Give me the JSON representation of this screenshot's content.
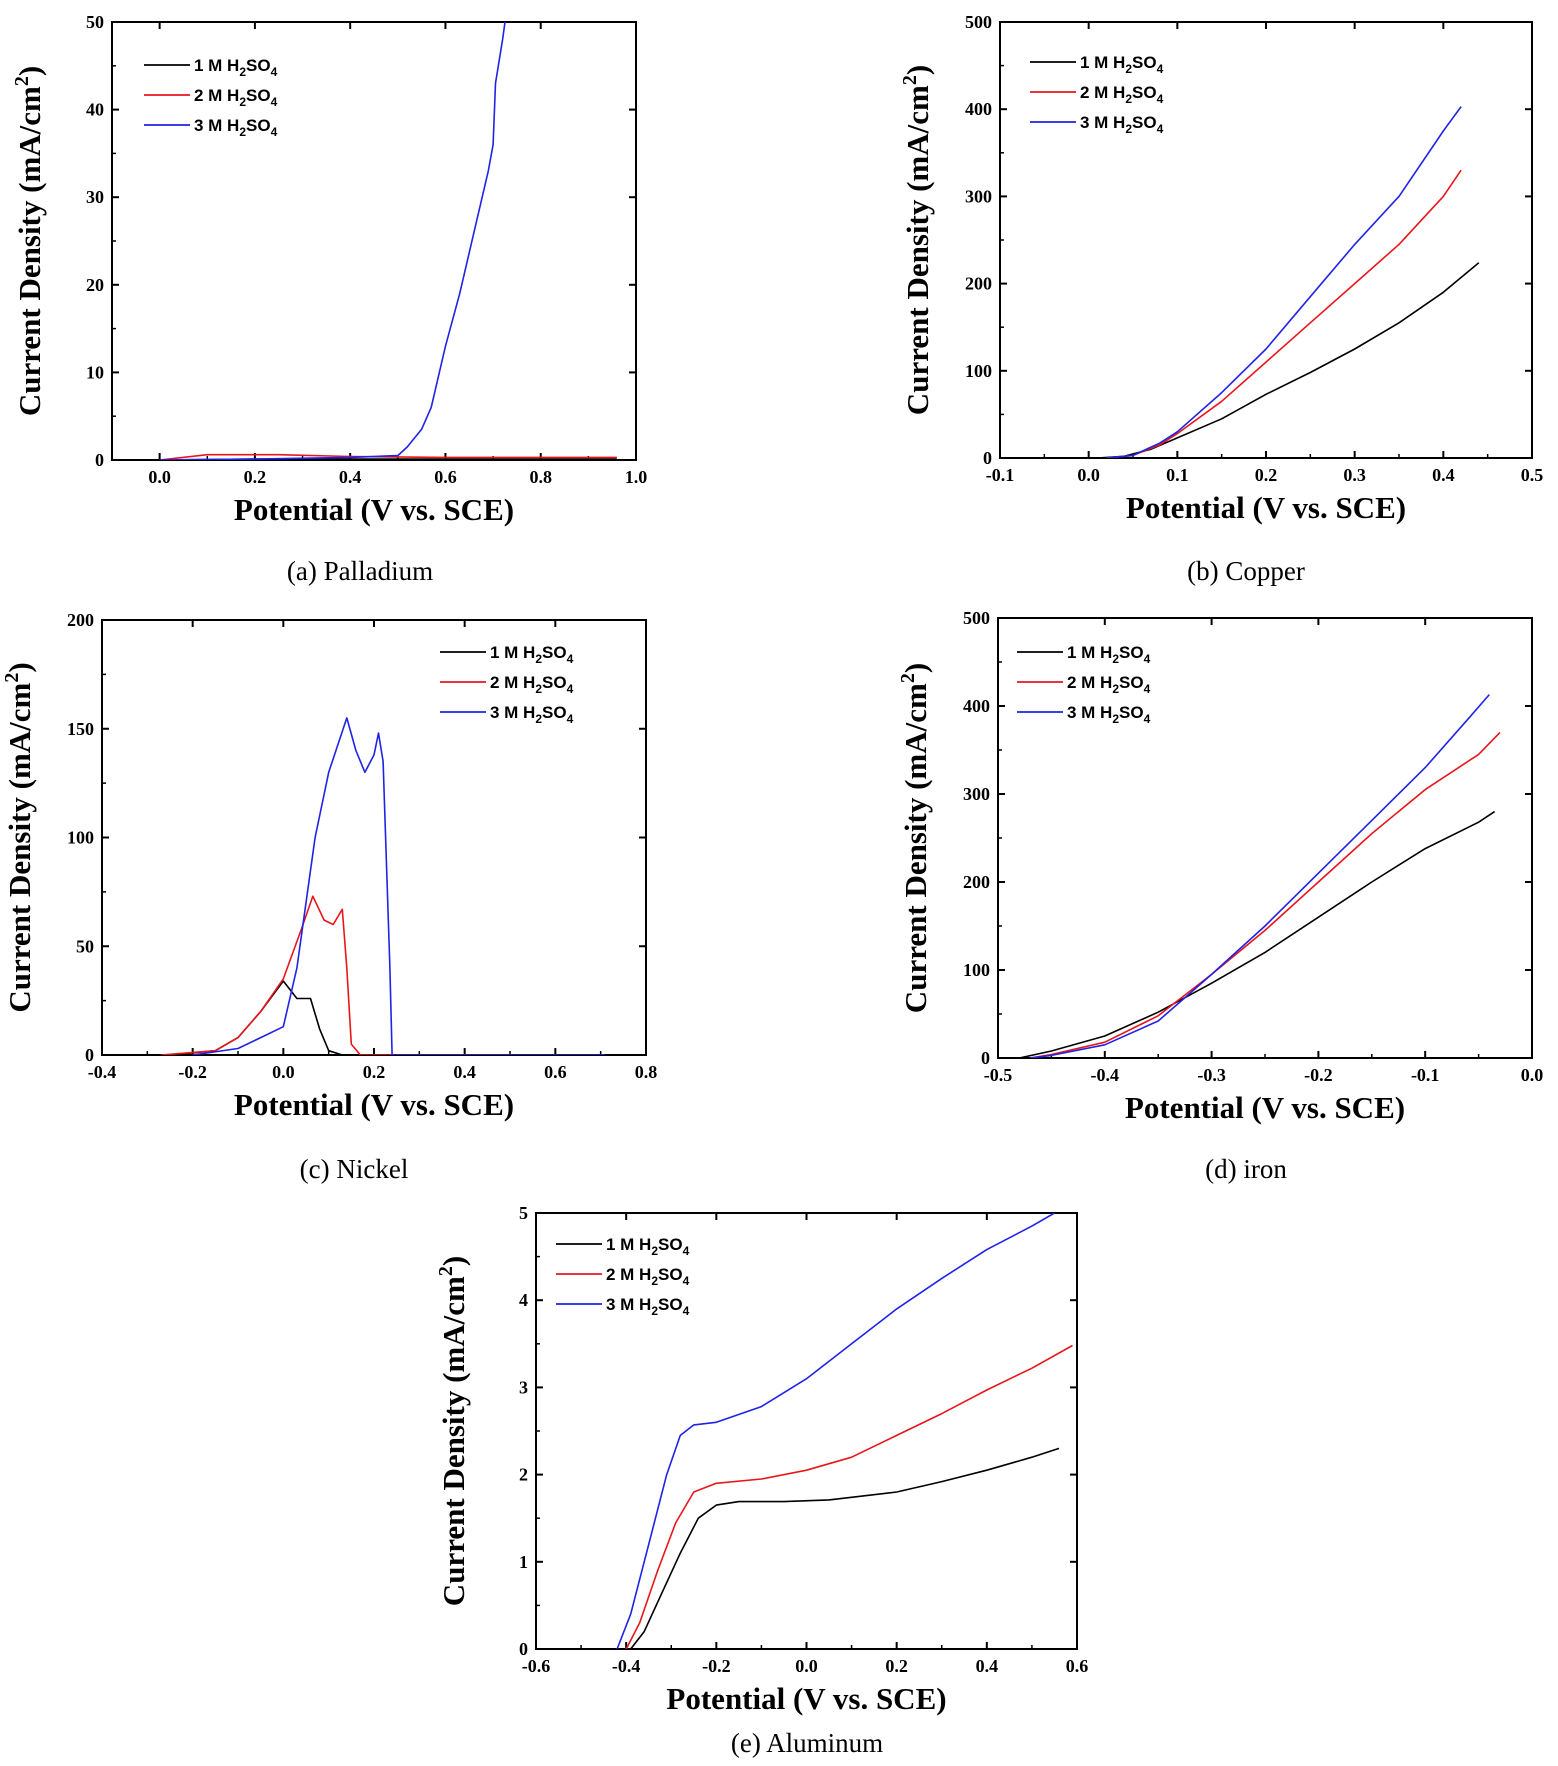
{
  "chart_data": [
    {
      "type": "line",
      "caption": "(a) Palladium",
      "xlabel": "Potential (V vs. SCE)",
      "ylabel": "Current Density (mA/cm2)",
      "xlim": [
        -0.1,
        1.0
      ],
      "ylim": [
        0,
        50
      ],
      "xticks": [
        0.0,
        0.2,
        0.4,
        0.6,
        0.8,
        1.0
      ],
      "yticks": [
        0,
        10,
        20,
        30,
        40,
        50
      ],
      "xtick_labels": [
        "0.0",
        "0.2",
        "0.4",
        "0.6",
        "0.8",
        "1.0"
      ],
      "ytick_labels": [
        "0",
        "10",
        "20",
        "30",
        "40",
        "50"
      ],
      "legend": "top-left",
      "series": [
        {
          "name": "1 M H2SO4",
          "color": "#000000",
          "points": [
            [
              -0.02,
              0.0
            ],
            [
              0.2,
              0.1
            ],
            [
              0.5,
              0.1
            ],
            [
              0.96,
              0.1
            ]
          ]
        },
        {
          "name": "2 M H2SO4",
          "color": "#e8161b",
          "points": [
            [
              0.0,
              0.0
            ],
            [
              0.1,
              0.6
            ],
            [
              0.25,
              0.6
            ],
            [
              0.4,
              0.4
            ],
            [
              0.6,
              0.3
            ],
            [
              0.96,
              0.3
            ]
          ]
        },
        {
          "name": "3 M H2SO4",
          "color": "#1f23e6",
          "points": [
            [
              0.0,
              0.0
            ],
            [
              0.2,
              0.1
            ],
            [
              0.4,
              0.3
            ],
            [
              0.5,
              0.5
            ],
            [
              0.52,
              1.5
            ],
            [
              0.55,
              3.5
            ],
            [
              0.57,
              6.0
            ],
            [
              0.6,
              13.0
            ],
            [
              0.63,
              19.0
            ],
            [
              0.66,
              26.0
            ],
            [
              0.69,
              33.0
            ],
            [
              0.7,
              36.0
            ],
            [
              0.705,
              43.0
            ],
            [
              0.72,
              48.0
            ],
            [
              0.725,
              50.0
            ]
          ]
        }
      ]
    },
    {
      "type": "line",
      "caption": "(b) Copper",
      "xlabel": "Potential (V vs. SCE)",
      "ylabel": "Current Density (mA/cm2)",
      "xlim": [
        -0.1,
        0.5
      ],
      "ylim": [
        0,
        500
      ],
      "xticks": [
        -0.1,
        0.0,
        0.1,
        0.2,
        0.3,
        0.4,
        0.5
      ],
      "yticks": [
        0,
        100,
        200,
        300,
        400,
        500
      ],
      "xtick_labels": [
        "-0.1",
        "0.0",
        "0.1",
        "0.2",
        "0.3",
        "0.4",
        "0.5"
      ],
      "ytick_labels": [
        "0",
        "100",
        "200",
        "300",
        "400",
        "500"
      ],
      "legend": "top-left",
      "series": [
        {
          "name": "1 M H2SO4",
          "color": "#000000",
          "points": [
            [
              0.01,
              0
            ],
            [
              0.04,
              2
            ],
            [
              0.07,
              10
            ],
            [
              0.1,
              23
            ],
            [
              0.15,
              45
            ],
            [
              0.2,
              73
            ],
            [
              0.25,
              98
            ],
            [
              0.3,
              125
            ],
            [
              0.35,
              155
            ],
            [
              0.4,
              190
            ],
            [
              0.44,
              224
            ]
          ]
        },
        {
          "name": "2 M H2SO4",
          "color": "#e8161b",
          "points": [
            [
              0.02,
              0
            ],
            [
              0.05,
              3
            ],
            [
              0.08,
              15
            ],
            [
              0.1,
              28
            ],
            [
              0.15,
              65
            ],
            [
              0.2,
              110
            ],
            [
              0.25,
              155
            ],
            [
              0.3,
              200
            ],
            [
              0.35,
              245
            ],
            [
              0.4,
              300
            ],
            [
              0.42,
              330
            ]
          ]
        },
        {
          "name": "3 M H2SO4",
          "color": "#1f23e6",
          "points": [
            [
              0.02,
              0
            ],
            [
              0.05,
              3
            ],
            [
              0.08,
              17
            ],
            [
              0.1,
              30
            ],
            [
              0.15,
              75
            ],
            [
              0.2,
              125
            ],
            [
              0.25,
              185
            ],
            [
              0.3,
              245
            ],
            [
              0.35,
              300
            ],
            [
              0.4,
              375
            ],
            [
              0.42,
              403
            ]
          ]
        }
      ]
    },
    {
      "type": "line",
      "caption": "(c) Nickel",
      "xlabel": "Potential (V vs. SCE)",
      "ylabel": "Current Density (mA/cm2)",
      "xlim": [
        -0.4,
        0.8
      ],
      "ylim": [
        0,
        200
      ],
      "xticks": [
        -0.4,
        -0.2,
        0.0,
        0.2,
        0.4,
        0.6,
        0.8
      ],
      "yticks": [
        0,
        50,
        100,
        150,
        200
      ],
      "xtick_labels": [
        "-0.4",
        "-0.2",
        "0.0",
        "0.2",
        "0.4",
        "0.6",
        "0.8"
      ],
      "ytick_labels": [
        "0",
        "50",
        "100",
        "150",
        "200"
      ],
      "legend": "top-right",
      "series": [
        {
          "name": "1 M H2SO4",
          "color": "#000000",
          "points": [
            [
              -0.25,
              0
            ],
            [
              -0.15,
              2
            ],
            [
              -0.1,
              8
            ],
            [
              -0.05,
              20
            ],
            [
              0.0,
              34
            ],
            [
              0.03,
              26
            ],
            [
              0.06,
              26
            ],
            [
              0.08,
              12
            ],
            [
              0.1,
              2
            ],
            [
              0.13,
              0
            ],
            [
              0.3,
              0
            ]
          ]
        },
        {
          "name": "2 M H2SO4",
          "color": "#e8161b",
          "points": [
            [
              -0.27,
              0
            ],
            [
              -0.15,
              2
            ],
            [
              -0.1,
              8
            ],
            [
              -0.05,
              20
            ],
            [
              0.0,
              35
            ],
            [
              0.04,
              58
            ],
            [
              0.065,
              73
            ],
            [
              0.09,
              62
            ],
            [
              0.11,
              60
            ],
            [
              0.13,
              67
            ],
            [
              0.14,
              40
            ],
            [
              0.15,
              5
            ],
            [
              0.17,
              0
            ],
            [
              0.5,
              0
            ]
          ]
        },
        {
          "name": "3 M H2SO4",
          "color": "#1f23e6",
          "points": [
            [
              -0.2,
              0
            ],
            [
              -0.1,
              3
            ],
            [
              -0.05,
              8
            ],
            [
              0.0,
              13
            ],
            [
              0.03,
              40
            ],
            [
              0.07,
              100
            ],
            [
              0.1,
              130
            ],
            [
              0.14,
              155
            ],
            [
              0.16,
              140
            ],
            [
              0.18,
              130
            ],
            [
              0.2,
              138
            ],
            [
              0.21,
              148
            ],
            [
              0.22,
              135
            ],
            [
              0.235,
              40
            ],
            [
              0.24,
              0
            ],
            [
              0.4,
              0
            ],
            [
              0.71,
              0
            ]
          ]
        }
      ]
    },
    {
      "type": "line",
      "caption": "(d) iron",
      "xlabel": "Potential (V vs. SCE)",
      "ylabel": "Current Density (mA/cm2)",
      "xlim": [
        -0.5,
        0.0
      ],
      "ylim": [
        0,
        500
      ],
      "xticks": [
        -0.5,
        -0.4,
        -0.3,
        -0.2,
        -0.1,
        0.0
      ],
      "yticks": [
        0,
        100,
        200,
        300,
        400,
        500
      ],
      "xtick_labels": [
        "-0.5",
        "-0.4",
        "-0.3",
        "-0.2",
        "-0.1",
        "0.0"
      ],
      "ytick_labels": [
        "0",
        "100",
        "200",
        "300",
        "400",
        "500"
      ],
      "legend": "top-left",
      "series": [
        {
          "name": "1 M H2SO4",
          "color": "#000000",
          "points": [
            [
              -0.48,
              0
            ],
            [
              -0.45,
              8
            ],
            [
              -0.4,
              25
            ],
            [
              -0.35,
              52
            ],
            [
              -0.3,
              85
            ],
            [
              -0.25,
              120
            ],
            [
              -0.2,
              160
            ],
            [
              -0.15,
              200
            ],
            [
              -0.1,
              238
            ],
            [
              -0.05,
              268
            ],
            [
              -0.035,
              280
            ]
          ]
        },
        {
          "name": "2 M H2SO4",
          "color": "#e8161b",
          "points": [
            [
              -0.47,
              0
            ],
            [
              -0.45,
              4
            ],
            [
              -0.4,
              18
            ],
            [
              -0.35,
              48
            ],
            [
              -0.3,
              95
            ],
            [
              -0.25,
              145
            ],
            [
              -0.2,
              200
            ],
            [
              -0.15,
              255
            ],
            [
              -0.1,
              305
            ],
            [
              -0.05,
              345
            ],
            [
              -0.03,
              370
            ]
          ]
        },
        {
          "name": "3 M H2SO4",
          "color": "#1f23e6",
          "points": [
            [
              -0.47,
              0
            ],
            [
              -0.45,
              3
            ],
            [
              -0.4,
              15
            ],
            [
              -0.35,
              42
            ],
            [
              -0.3,
              95
            ],
            [
              -0.25,
              150
            ],
            [
              -0.2,
              210
            ],
            [
              -0.15,
              270
            ],
            [
              -0.1,
              330
            ],
            [
              -0.06,
              385
            ],
            [
              -0.04,
              413
            ]
          ]
        }
      ]
    },
    {
      "type": "line",
      "caption": "(e) Aluminum",
      "xlabel": "Potential (V vs. SCE)",
      "ylabel": "Current Density (mA/cm2)",
      "xlim": [
        -0.6,
        0.6
      ],
      "ylim": [
        0,
        5
      ],
      "xticks": [
        -0.6,
        -0.4,
        -0.2,
        0.0,
        0.2,
        0.4,
        0.6
      ],
      "yticks": [
        0,
        1,
        2,
        3,
        4,
        5
      ],
      "xtick_labels": [
        "-0.6",
        "-0.4",
        "-0.2",
        "0.0",
        "0.2",
        "0.4",
        "0.6"
      ],
      "ytick_labels": [
        "0",
        "1",
        "2",
        "3",
        "4",
        "5"
      ],
      "legend": "top-left",
      "series": [
        {
          "name": "1 M H2SO4",
          "color": "#000000",
          "points": [
            [
              -0.39,
              0
            ],
            [
              -0.36,
              0.2
            ],
            [
              -0.32,
              0.65
            ],
            [
              -0.28,
              1.1
            ],
            [
              -0.24,
              1.5
            ],
            [
              -0.2,
              1.65
            ],
            [
              -0.15,
              1.69
            ],
            [
              -0.05,
              1.69
            ],
            [
              0.05,
              1.71
            ],
            [
              0.2,
              1.8
            ],
            [
              0.3,
              1.92
            ],
            [
              0.4,
              2.05
            ],
            [
              0.5,
              2.2
            ],
            [
              0.56,
              2.3
            ]
          ]
        },
        {
          "name": "2 M H2SO4",
          "color": "#e8161b",
          "points": [
            [
              -0.4,
              0
            ],
            [
              -0.37,
              0.3
            ],
            [
              -0.33,
              0.9
            ],
            [
              -0.29,
              1.45
            ],
            [
              -0.25,
              1.8
            ],
            [
              -0.2,
              1.9
            ],
            [
              -0.1,
              1.95
            ],
            [
              0.0,
              2.05
            ],
            [
              0.1,
              2.2
            ],
            [
              0.2,
              2.45
            ],
            [
              0.3,
              2.7
            ],
            [
              0.4,
              2.97
            ],
            [
              0.5,
              3.22
            ],
            [
              0.59,
              3.48
            ]
          ]
        },
        {
          "name": "3 M H2SO4",
          "color": "#1f23e6",
          "points": [
            [
              -0.42,
              0
            ],
            [
              -0.39,
              0.4
            ],
            [
              -0.35,
              1.2
            ],
            [
              -0.31,
              2.0
            ],
            [
              -0.28,
              2.45
            ],
            [
              -0.25,
              2.57
            ],
            [
              -0.2,
              2.6
            ],
            [
              -0.1,
              2.78
            ],
            [
              0.0,
              3.1
            ],
            [
              0.1,
              3.5
            ],
            [
              0.2,
              3.9
            ],
            [
              0.3,
              4.25
            ],
            [
              0.4,
              4.58
            ],
            [
              0.5,
              4.85
            ],
            [
              0.55,
              5.0
            ]
          ]
        }
      ]
    }
  ]
}
